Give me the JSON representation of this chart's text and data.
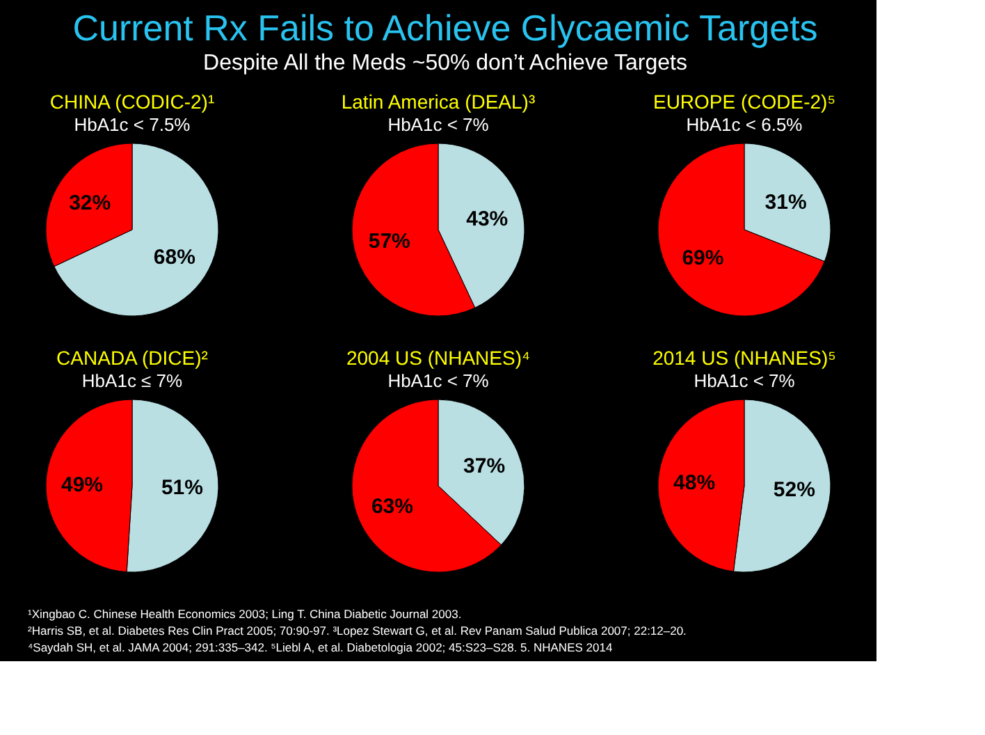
{
  "chart_data": [
    {
      "type": "pie",
      "title": "CHINA (CODIC-2)¹",
      "subtitle": "HbA1c < 7.5%",
      "categories": [
        null,
        null
      ],
      "values": [
        68,
        32
      ],
      "colors": [
        "#b9dfe3",
        "#ff0000"
      ],
      "value_labels": [
        "68%",
        "32%"
      ],
      "annotations": [
        "Current Rx Fails to Achieve Glycaemic Targets",
        "Despite All the Meds ~50% don’t Achieve Targets"
      ]
    },
    {
      "type": "pie",
      "title": "Latin America (DEAL)³",
      "subtitle": "HbA1c < 7%",
      "categories": [
        null,
        null
      ],
      "values": [
        43,
        57
      ],
      "colors": [
        "#b9dfe3",
        "#ff0000"
      ],
      "value_labels": [
        "43%",
        "57%"
      ]
    },
    {
      "type": "pie",
      "title": "EUROPE (CODE-2)⁵",
      "subtitle": "HbA1c < 6.5%",
      "categories": [
        null,
        null
      ],
      "values": [
        31,
        69
      ],
      "colors": [
        "#b9dfe3",
        "#ff0000"
      ],
      "value_labels": [
        "31%",
        "69%"
      ]
    },
    {
      "type": "pie",
      "title": "CANADA (DICE)²",
      "subtitle": "HbA1c ≤ 7%",
      "categories": [
        null,
        null
      ],
      "values": [
        51,
        49
      ],
      "colors": [
        "#b9dfe3",
        "#ff0000"
      ],
      "value_labels": [
        "51%",
        "49%"
      ]
    },
    {
      "type": "pie",
      "title": "2004 US (NHANES)⁴",
      "subtitle": "HbA1c < 7%",
      "categories": [
        null,
        null
      ],
      "values": [
        37,
        63
      ],
      "colors": [
        "#b9dfe3",
        "#ff0000"
      ],
      "value_labels": [
        "37%",
        "63%"
      ]
    },
    {
      "type": "pie",
      "title": "2014 US (NHANES)⁵",
      "subtitle": "HbA1c < 7%",
      "categories": [
        null,
        null
      ],
      "values": [
        52,
        48
      ],
      "colors": [
        "#b9dfe3",
        "#ff0000"
      ],
      "value_labels": [
        "52%",
        "48%"
      ],
      "annotations": [
        "¹Xingbao C. Chinese Health Economics 2003; Ling T. China Diabetic Journal 2003.",
        "²Harris SB, et al. Diabetes Res Clin Pract 2005; 70:90-97. ³Lopez Stewart G, et al. Rev Panam Salud Publica 2007; 22:12–20.",
        "⁴Saydah SH, et al. JAMA 2004; 291:335–342. ⁵Liebl A, et al. Diabetologia 2002; 45:S23–S28. 5. NHANES 2014"
      ]
    }
  ]
}
